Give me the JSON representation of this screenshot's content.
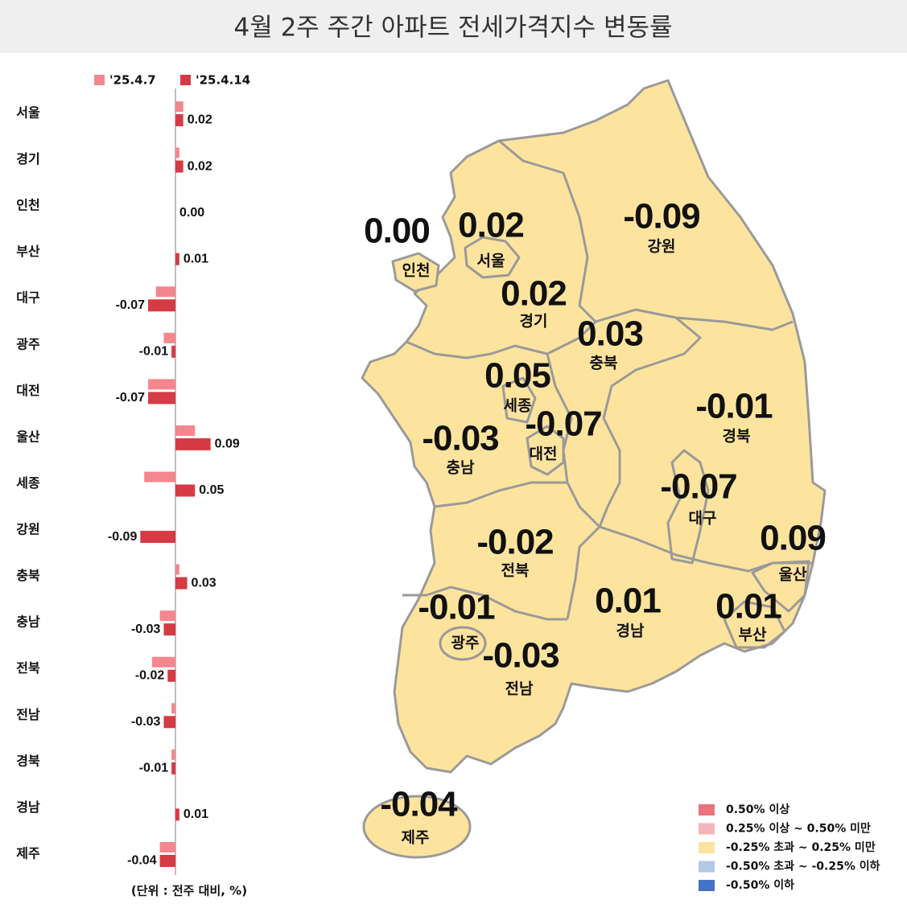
{
  "chart_data": {
    "type": "bar",
    "title": "4월 2주 주간 아파트 전세가격지수 변동률",
    "unit_note": "(단위 : 전주 대비, %)",
    "categories": [
      "서울",
      "경기",
      "인천",
      "부산",
      "대구",
      "광주",
      "대전",
      "울산",
      "세종",
      "강원",
      "충북",
      "충남",
      "전북",
      "전남",
      "경북",
      "경남",
      "제주"
    ],
    "series": [
      {
        "name": "'25.4.7",
        "color": "#f4868e",
        "values": [
          0.02,
          0.01,
          0,
          0,
          -0.05,
          -0.03,
          -0.07,
          0.05,
          -0.08,
          0,
          0.01,
          -0.04,
          -0.06,
          -0.01,
          -0.01,
          0,
          -0.04
        ]
      },
      {
        "name": "'25.4.14",
        "color": "#d63a44",
        "values": [
          0.02,
          0.02,
          0,
          0.01,
          -0.07,
          -0.01,
          -0.07,
          0.09,
          0.05,
          -0.09,
          0.03,
          -0.03,
          -0.02,
          -0.03,
          -0.01,
          0.01,
          -0.04
        ],
        "value_labels": [
          "0.02",
          "0.02",
          "0.00",
          "0.01",
          "-0.07",
          "-0.01",
          "-0.07",
          "0.09",
          "0.05",
          "-0.09",
          "0.03",
          "-0.03",
          "-0.02",
          "-0.03",
          "-0.01",
          "0.01",
          "-0.04"
        ]
      }
    ],
    "xlim": [
      -0.3,
      0.3
    ],
    "legend": "top-left"
  },
  "map_legend": [
    {
      "label": "0.50% 이상",
      "color": "#e8737a"
    },
    {
      "label": "0.25% 이상 ~ 0.50% 미만",
      "color": "#f4b5b9"
    },
    {
      "label": "-0.25% 초과 ~ 0.25% 미만",
      "color": "#fde49e"
    },
    {
      "label": "-0.50% 초과 ~ -0.25% 이하",
      "color": "#b4c7e7"
    },
    {
      "label": "-0.50% 이하",
      "color": "#4472c4"
    }
  ]
}
